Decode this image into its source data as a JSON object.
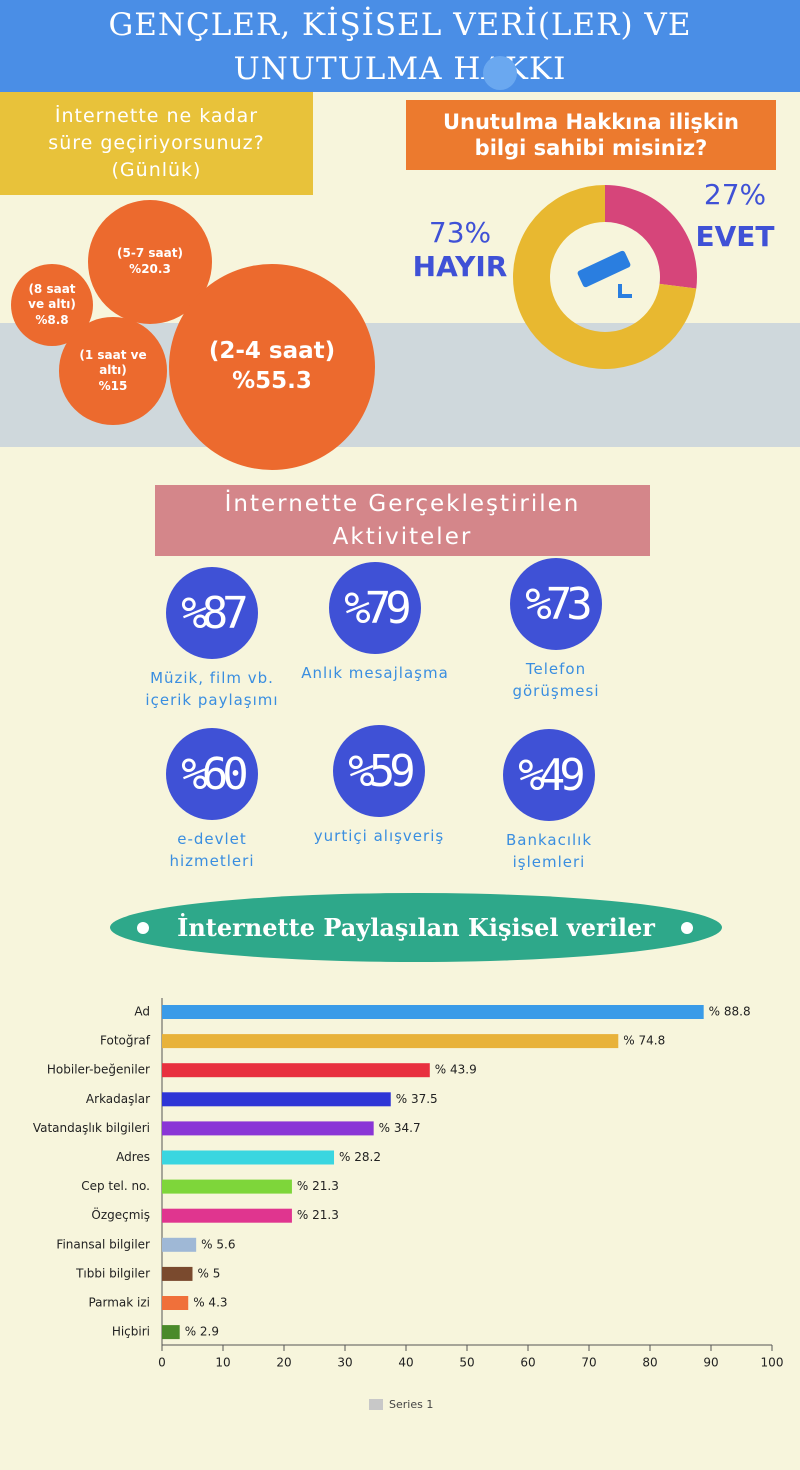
{
  "title": "GENÇLER, KİŞİSEL VERİ(LER) VE UNUTULMA HAKKI",
  "chart_data": [
    {
      "type": "bubble",
      "title": "İnternette ne kadar süre geçiriyorsunuz? (Günlük)",
      "categories": [
        "(5-7 saat)",
        "(8 saat ve altı)",
        "(1 saat ve altı)",
        "(2-4 saat)"
      ],
      "values": [
        20.3,
        8.8,
        15,
        55.3
      ],
      "value_labels": [
        "%20.3",
        "%8.8",
        "%15",
        "%55.3"
      ],
      "color": "#ec6a2e"
    },
    {
      "type": "pie",
      "title": "Unutulma Hakkına ilişkin bilgi sahibi misiniz?",
      "categories": [
        "EVET",
        "HAYIR"
      ],
      "values": [
        27,
        73
      ],
      "value_labels": [
        "27%",
        "73%"
      ],
      "colors": [
        "#d6457a",
        "#e8b830"
      ]
    },
    {
      "type": "bar",
      "orientation": "horizontal",
      "categories": [
        "Ad",
        "Fotoğraf",
        "Hobiler-beğeniler",
        "Arkadaşlar",
        "Vatandaşlık bilgileri",
        "Adres",
        "Cep tel. no.",
        "Özgeçmiş",
        "Finansal bilgiler",
        "Tıbbi bilgiler",
        "Parmak izi",
        "Hiçbiri"
      ],
      "series": [
        {
          "name": "Series 1",
          "color": "#c8c8c8",
          "values": [
            88.8,
            74.8,
            43.9,
            37.5,
            34.7,
            28.2,
            21.3,
            21.3,
            5.6,
            5,
            4.3,
            2.9
          ],
          "value_labels": [
            "% 88.8",
            "% 74.8",
            "% 43.9",
            "% 37.5",
            "% 34.7",
            "% 28.2",
            "% 21.3",
            "% 21.3",
            "% 5.6",
            "% 5",
            "% 4.3",
            "% 2.9"
          ],
          "colors": [
            "#3a9be8",
            "#e8b23a",
            "#e8303f",
            "#2e35d6",
            "#8a35d6",
            "#3ad6e0",
            "#7ed63a",
            "#e0358f",
            "#9fb8d6",
            "#7a4a2e",
            "#f0703a",
            "#4a8a2a"
          ]
        }
      ],
      "xlim": [
        0,
        100
      ],
      "xticks": [
        0,
        10,
        20,
        30,
        40,
        50,
        60,
        70,
        80,
        90,
        100
      ],
      "legend": "bottom"
    }
  ],
  "activities": {
    "title": "İnternette Gerçekleştirilen Aktiviteler",
    "items": [
      {
        "value": "%87",
        "caption": "Müzik, film vb. içerik paylaşımı"
      },
      {
        "value": "%79",
        "caption": "Anlık mesajlaşma"
      },
      {
        "value": "%73",
        "caption": "Telefon görüşmesi"
      },
      {
        "value": "%60",
        "caption": "e-devlet hizmetleri"
      },
      {
        "value": "%59",
        "caption": "yurtiçi alışveriş"
      },
      {
        "value": "%49",
        "caption": "Bankacılık işlemleri"
      }
    ]
  },
  "shared_title": "İnternette Paylaşılan Kişisel veriler"
}
